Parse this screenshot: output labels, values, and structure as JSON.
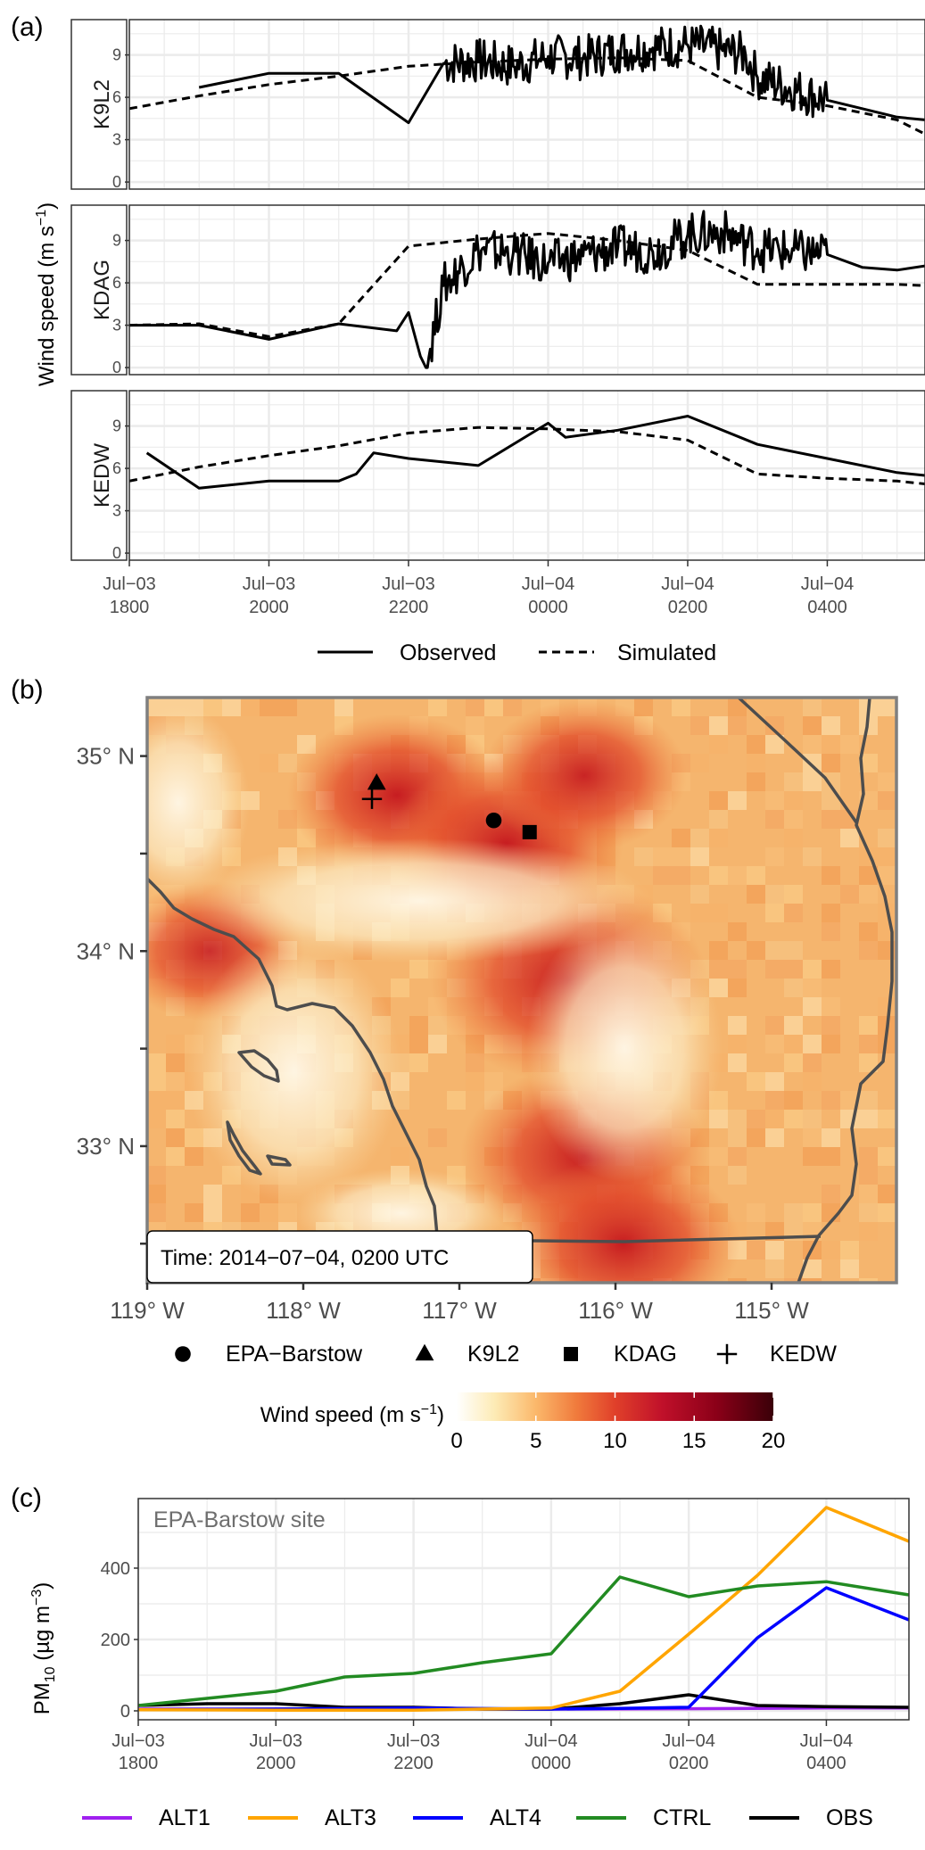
{
  "panel_labels": {
    "a": "(a)",
    "b": "(b)",
    "c": "(c)"
  },
  "colors": {
    "ALT1": "#a020f0",
    "ALT3": "#ffa500",
    "ALT4": "#0000ff",
    "CTRL": "#228b22",
    "OBS": "#000000",
    "map_frame": "#7f7f7f"
  },
  "chart_data": [
    {
      "type": "line",
      "ylabel": "Wind speed (m s",
      "ylabel_sup": "−1",
      "ylabel_close": ")",
      "x_ticks": [
        "Jul−03\n1800",
        "Jul−03\n2000",
        "Jul−03\n2200",
        "Jul−04\n0000",
        "Jul−04\n0200",
        "Jul−04\n0400"
      ],
      "x_tick_hours": [
        18,
        20,
        22,
        24,
        26,
        28
      ],
      "xlim": [
        18,
        29.4
      ],
      "y_ticks": [
        0,
        3,
        6,
        9
      ],
      "ylim": [
        -0.5,
        11.5
      ],
      "legend": [
        {
          "label": "Observed",
          "style": "solid"
        },
        {
          "label": "Simulated",
          "style": "dashed"
        }
      ],
      "facets": [
        {
          "name": "K9L2",
          "observed": [
            [
              19,
              6.7
            ],
            [
              20,
              7.7
            ],
            [
              21,
              7.7
            ],
            [
              22,
              4.2
            ],
            [
              22.5,
              8.4
            ],
            [
              23,
              8.6
            ],
            [
              23.5,
              8.2
            ],
            [
              24,
              8.9
            ],
            [
              24.5,
              8.8
            ],
            [
              25,
              9.3
            ],
            [
              25.5,
              9.5
            ],
            [
              26,
              9.7
            ],
            [
              26.5,
              9.3
            ],
            [
              26.83,
              9.0
            ],
            [
              27,
              7.4
            ],
            [
              28,
              5.8
            ],
            [
              29,
              4.6
            ],
            [
              29.4,
              4.4
            ]
          ],
          "simulated": [
            [
              18,
              5.2
            ],
            [
              19,
              6.1
            ],
            [
              20,
              6.9
            ],
            [
              21,
              7.5
            ],
            [
              22,
              8.2
            ],
            [
              23,
              8.5
            ],
            [
              24,
              8.7
            ],
            [
              25,
              8.8
            ],
            [
              26,
              8.6
            ],
            [
              27,
              6.0
            ],
            [
              28,
              5.4
            ],
            [
              29,
              4.4
            ],
            [
              29.4,
              3.4
            ]
          ]
        },
        {
          "name": "KDAG",
          "observed": [
            [
              18,
              3.0
            ],
            [
              18.75,
              3.0
            ],
            [
              19,
              3.0
            ],
            [
              20,
              2.0
            ],
            [
              21,
              3.1
            ],
            [
              21.83,
              2.6
            ],
            [
              22,
              3.9
            ],
            [
              22.17,
              0.8
            ],
            [
              22.25,
              0.0
            ],
            [
              22.5,
              5.8
            ],
            [
              23,
              8.3
            ],
            [
              23.5,
              8.1
            ],
            [
              24,
              7.4
            ],
            [
              24.5,
              7.9
            ],
            [
              25,
              8.5
            ],
            [
              25.5,
              8.2
            ],
            [
              26,
              9.4
            ],
            [
              26.5,
              9.6
            ],
            [
              27,
              8.4
            ],
            [
              28,
              8.0
            ],
            [
              28.5,
              7.1
            ],
            [
              29,
              6.9
            ],
            [
              29.4,
              7.2
            ]
          ],
          "simulated": [
            [
              18,
              3.0
            ],
            [
              19,
              3.1
            ],
            [
              20,
              2.2
            ],
            [
              21,
              3.1
            ],
            [
              22,
              8.6
            ],
            [
              23,
              9.1
            ],
            [
              24,
              9.5
            ],
            [
              25,
              9.0
            ],
            [
              26,
              8.3
            ],
            [
              27,
              5.9
            ],
            [
              28,
              5.9
            ],
            [
              29,
              5.9
            ],
            [
              29.4,
              5.8
            ]
          ]
        },
        {
          "name": "KEDW",
          "observed": [
            [
              18.25,
              7.1
            ],
            [
              19,
              4.6
            ],
            [
              20,
              5.1
            ],
            [
              21,
              5.1
            ],
            [
              21.25,
              5.6
            ],
            [
              21.5,
              7.1
            ],
            [
              22,
              6.7
            ],
            [
              23,
              6.2
            ],
            [
              24,
              9.2
            ],
            [
              24.25,
              8.2
            ],
            [
              25,
              8.7
            ],
            [
              26,
              9.7
            ],
            [
              27,
              7.7
            ],
            [
              28,
              6.7
            ],
            [
              29,
              5.7
            ],
            [
              29.4,
              5.5
            ]
          ],
          "simulated": [
            [
              18,
              5.1
            ],
            [
              19,
              6.1
            ],
            [
              20,
              6.9
            ],
            [
              21,
              7.6
            ],
            [
              22,
              8.5
            ],
            [
              23,
              8.9
            ],
            [
              24,
              8.8
            ],
            [
              25,
              8.6
            ],
            [
              26,
              8.0
            ],
            [
              27,
              5.6
            ],
            [
              28,
              5.3
            ],
            [
              29,
              5.1
            ],
            [
              29.4,
              4.9
            ]
          ]
        }
      ]
    },
    {
      "type": "heatmap",
      "timestamp": "Time: 2014−07−04, 0200 UTC",
      "x_ticks": [
        "119° W",
        "118° W",
        "117° W",
        "116° W",
        "115° W"
      ],
      "x_tick_values": [
        -119,
        -118,
        -117,
        -116,
        -115
      ],
      "y_ticks": [
        "35° N",
        "34° N",
        "33° N"
      ],
      "y_tick_values": [
        35,
        34,
        33
      ],
      "xlim": [
        -119,
        -114.2
      ],
      "ylim": [
        32.3,
        35.3
      ],
      "stations": [
        {
          "name": "EPA−Barstow",
          "lon": -116.78,
          "lat": 34.67,
          "symbol": "circle"
        },
        {
          "name": "K9L2",
          "lon": -117.53,
          "lat": 34.86,
          "symbol": "triangle"
        },
        {
          "name": "KDAG",
          "lon": -116.55,
          "lat": 34.61,
          "symbol": "square"
        },
        {
          "name": "KEDW",
          "lon": -117.56,
          "lat": 34.78,
          "symbol": "plus"
        }
      ],
      "colorbar": {
        "title": "Wind speed (m s",
        "title_sup": "−1",
        "title_close": ")",
        "ticks": [
          0,
          5,
          10,
          15,
          20
        ],
        "range": [
          0,
          20
        ]
      },
      "hotspots": [
        {
          "lon": -117.4,
          "lat": 34.8,
          "speed": 11
        },
        {
          "lon": -116.7,
          "lat": 34.55,
          "speed": 12
        },
        {
          "lon": -116.2,
          "lat": 34.9,
          "speed": 10
        },
        {
          "lon": -116.3,
          "lat": 33.85,
          "speed": 15
        },
        {
          "lon": -116.2,
          "lat": 32.95,
          "speed": 13
        },
        {
          "lon": -115.95,
          "lat": 32.5,
          "speed": 12
        },
        {
          "lon": -118.6,
          "lat": 34.0,
          "speed": 9
        }
      ]
    },
    {
      "type": "line",
      "annotation": "EPA-Barstow site",
      "ylabel": "PM",
      "ylabel_sub": "10",
      "ylabel_rest": " (µg m",
      "ylabel_sup": "−3",
      "ylabel_close": ")",
      "x_ticks": [
        "Jul−03\n1800",
        "Jul−03\n2000",
        "Jul−03\n2200",
        "Jul−04\n0000",
        "Jul−04\n0200",
        "Jul−04\n0400"
      ],
      "x_tick_hours": [
        18,
        20,
        22,
        24,
        26,
        28
      ],
      "xlim": [
        18,
        29.2
      ],
      "y_ticks": [
        0,
        200,
        400
      ],
      "ylim": [
        -25,
        595
      ],
      "series": [
        {
          "name": "ALT1",
          "points": [
            [
              18,
              5
            ],
            [
              20,
              5
            ],
            [
              22,
              5
            ],
            [
              24,
              5
            ],
            [
              26,
              6
            ],
            [
              28,
              8
            ],
            [
              29.2,
              8
            ]
          ]
        },
        {
          "name": "ALT3",
          "points": [
            [
              18,
              3
            ],
            [
              20,
              2
            ],
            [
              22,
              2
            ],
            [
              24,
              8
            ],
            [
              25,
              55
            ],
            [
              26,
              215
            ],
            [
              27,
              380
            ],
            [
              28,
              570
            ],
            [
              29.2,
              475
            ]
          ]
        },
        {
          "name": "ALT4",
          "points": [
            [
              18,
              3
            ],
            [
              20,
              5
            ],
            [
              22,
              8
            ],
            [
              24,
              5
            ],
            [
              25,
              7
            ],
            [
              26,
              10
            ],
            [
              27,
              205
            ],
            [
              28,
              345
            ],
            [
              29.2,
              255
            ]
          ]
        },
        {
          "name": "CTRL",
          "points": [
            [
              18,
              15
            ],
            [
              19,
              35
            ],
            [
              20,
              55
            ],
            [
              21,
              95
            ],
            [
              22,
              105
            ],
            [
              23,
              135
            ],
            [
              24,
              160
            ],
            [
              25,
              375
            ],
            [
              26,
              320
            ],
            [
              27,
              350
            ],
            [
              28,
              362
            ],
            [
              29.2,
              325
            ]
          ]
        },
        {
          "name": "OBS",
          "points": [
            [
              18,
              15
            ],
            [
              19,
              20
            ],
            [
              20,
              20
            ],
            [
              21,
              10
            ],
            [
              22,
              10
            ],
            [
              23,
              5
            ],
            [
              24,
              5
            ],
            [
              25,
              20
            ],
            [
              26,
              45
            ],
            [
              27,
              15
            ],
            [
              28,
              12
            ],
            [
              29.2,
              10
            ]
          ]
        }
      ]
    }
  ]
}
